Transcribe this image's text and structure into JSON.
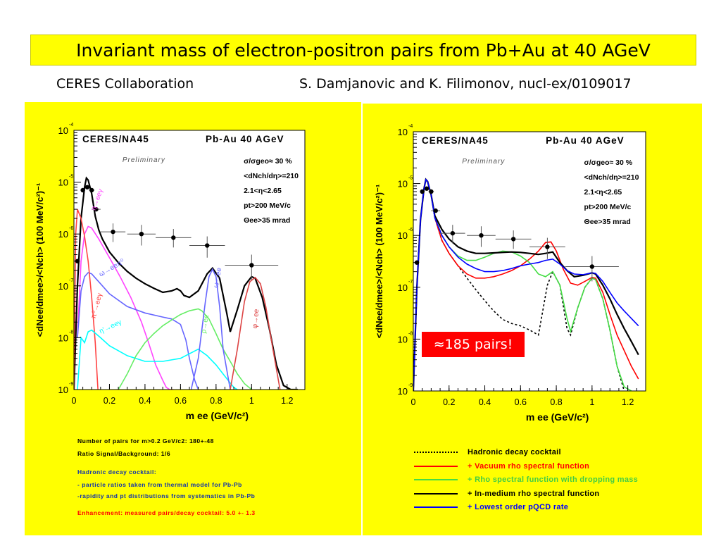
{
  "header": {
    "title": "Invariant mass of  electron-positron pairs  from  Pb+Au at 40 AGeV",
    "collab": "CERES Collaboration",
    "ref": "S. Damjanovic and K. Filimonov, nucl-ex/0109017"
  },
  "colors": {
    "panel_bg": "#ffff00",
    "plot_bg": "#ffffff",
    "red": "#ff0000",
    "green": "#44dd44",
    "blue": "#0000ff",
    "black": "#000000",
    "magenta": "#ff44ff",
    "cyan": "#00ffff",
    "lightgreen": "#66ee66",
    "lightblue": "#6666ff"
  },
  "plot_common": {
    "experiment": "CERES/NA45",
    "system": "Pb-Au 40 AGeV",
    "preliminary": "Preliminary",
    "cuts": [
      "σ/σgeo≈ 30 %",
      "<dNch/dη>=210",
      "2.1<η<2.65",
      "pt>200 MeV/c",
      "Θee>35 mrad"
    ],
    "ylabel": "<dNee/dmee>/<Nch> (100 MeV/c²)⁻¹",
    "xlabel": "m ee (GeV/c²)",
    "xticks": [
      "0",
      "0.2",
      "0.4",
      "0.6",
      "0.8",
      "1",
      "1.2"
    ],
    "ytick_mant": [
      "10",
      "10",
      "10",
      "10",
      "10",
      "10"
    ],
    "ytick_exp": [
      "-9",
      "-8",
      "-7",
      "-6",
      "-5",
      "-4"
    ]
  },
  "left_labels": [
    "η→eeγ",
    "ω→eeπ⁰",
    "π⁰→eeγ",
    "η'→eeγ",
    "ρ→ee",
    "ω→ee",
    "φ→ee"
  ],
  "left_notes": {
    "n1": "Number of pairs for m>0.2 GeV/c2: 180+-48",
    "n2": "Ratio Signal/Background: 1/6",
    "n3": "Hadronic decay cocktail:",
    "n4": "- particle ratios taken from  thermal model for Pb-Pb",
    "n5": "-rapidity and pt distributions from  systematics in Pb-Pb",
    "n6": "Enhancement: measured pairs/decay cocktail: 5.0 +- 1.3"
  },
  "callout": "≈185 pairs!",
  "legend": [
    {
      "label": "Hadronic decay cocktail",
      "color": "#000000",
      "style": "dotted"
    },
    {
      "label": "+ Vacuum rho spectral function",
      "color": "#ff0000",
      "style": "solid"
    },
    {
      "label": "+ Rho spectral function with dropping mass",
      "color": "#44dd44",
      "style": "solid"
    },
    {
      "label": "+ In-medium rho spectral function",
      "color": "#000000",
      "style": "solid"
    },
    {
      "label": "+ Lowest order pQCD rate",
      "color": "#0000ff",
      "style": "solid"
    }
  ],
  "chart_data": [
    {
      "type": "line",
      "title": "CERES/NA45 Pb-Au 40 AGeV",
      "xlabel": "m ee (GeV/c²)",
      "ylabel": "<dNee/dmee>/<Nch> (100 MeV/c²)⁻¹",
      "xlim": [
        0,
        1.3
      ],
      "ylim": [
        1e-09,
        0.0001
      ],
      "yscale": "log",
      "data_points": {
        "x": [
          0.02,
          0.05,
          0.075,
          0.1,
          0.125,
          0.22,
          0.38,
          0.56,
          0.75,
          1.0
        ],
        "y": [
          3e-07,
          7e-06,
          8e-06,
          7e-06,
          3e-06,
          1.1e-06,
          1e-06,
          8.5e-07,
          6e-07,
          2.5e-07
        ],
        "xerr": [
          0.01,
          0.01,
          0.01,
          0.015,
          0.025,
          0.07,
          0.08,
          0.1,
          0.1,
          0.15
        ],
        "yerr_lo": [
          0,
          0,
          0,
          0,
          0,
          4e-07,
          4e-07,
          3e-07,
          2.5e-07,
          1.2e-07
        ],
        "yerr_hi": [
          0,
          0,
          0,
          0,
          0,
          5e-07,
          5e-07,
          4e-07,
          3e-07,
          1.5e-07
        ]
      },
      "series": [
        {
          "name": "total cocktail",
          "color": "#000000",
          "x": [
            0.0,
            0.02,
            0.04,
            0.06,
            0.07,
            0.08,
            0.1,
            0.12,
            0.14,
            0.16,
            0.2,
            0.25,
            0.3,
            0.35,
            0.4,
            0.45,
            0.5,
            0.55,
            0.58,
            0.6,
            0.62,
            0.65,
            0.7,
            0.75,
            0.78,
            0.82,
            0.86,
            0.88,
            0.92,
            0.96,
            1.0,
            1.02,
            1.06,
            1.1,
            1.14,
            1.18,
            1.22,
            1.26
          ],
          "y": [
            1e-09,
            1e-07,
            2e-06,
            8e-06,
            1.2e-05,
            1.1e-05,
            6e-06,
            2.2e-06,
            1.2e-06,
            8e-07,
            4.5e-07,
            2.8e-07,
            1.9e-07,
            1.4e-07,
            1.1e-07,
            9e-08,
            7.5e-08,
            8e-08,
            8.8e-08,
            8e-08,
            6.5e-08,
            6e-08,
            8e-08,
            1.7e-07,
            2.2e-07,
            1.4e-07,
            3e-08,
            1.3e-08,
            3.5e-08,
            1e-07,
            1.5e-07,
            1.4e-07,
            6e-08,
            1.5e-08,
            3e-09,
            1.2e-09,
            1e-09,
            1e-09
          ]
        },
        {
          "name": "η→eeγ",
          "color": "#ff44ff",
          "x": [
            0.02,
            0.04,
            0.06,
            0.08,
            0.1,
            0.14,
            0.2,
            0.26,
            0.32,
            0.38,
            0.42,
            0.46,
            0.5,
            0.52,
            0.54,
            0.56
          ],
          "y": [
            1e-08,
            3e-07,
            1e-06,
            1.4e-06,
            1.3e-06,
            8e-07,
            3.5e-07,
            1.5e-07,
            6e-08,
            2e-08,
            8e-09,
            3e-09,
            1.5e-09,
            1.1e-09,
            1e-09,
            1e-09
          ]
        },
        {
          "name": "ω→eeπ⁰",
          "color": "#6666ff",
          "x": [
            0.02,
            0.04,
            0.06,
            0.08,
            0.1,
            0.15,
            0.2,
            0.3,
            0.4,
            0.5,
            0.55,
            0.6,
            0.63,
            0.65,
            0.68,
            0.7
          ],
          "y": [
            1e-08,
            8e-08,
            1.5e-07,
            1.8e-07,
            1.7e-07,
            1.1e-07,
            7e-08,
            4e-08,
            3e-08,
            2.5e-08,
            2.3e-08,
            1.8e-08,
            9e-09,
            4e-09,
            1.5e-09,
            1e-09
          ]
        },
        {
          "name": "π⁰→eeγ",
          "color": "#ff4444",
          "x": [
            0.0,
            0.01,
            0.02,
            0.04,
            0.06,
            0.08,
            0.1,
            0.12,
            0.13,
            0.135
          ],
          "y": [
            1e-09,
            1e-06,
            3e-06,
            2e-06,
            9e-07,
            3e-07,
            6e-08,
            8e-09,
            2e-09,
            1e-09
          ]
        },
        {
          "name": "η'→eeγ",
          "color": "#00ffff",
          "x": [
            0.02,
            0.04,
            0.06,
            0.08,
            0.1,
            0.15,
            0.2,
            0.3,
            0.4,
            0.5,
            0.6,
            0.7,
            0.75,
            0.8,
            0.85,
            0.9,
            0.92
          ],
          "y": [
            1e-09,
            1e-08,
            8e-09,
            1.3e-08,
            1.4e-08,
            1e-08,
            7e-09,
            4.5e-09,
            3.5e-09,
            3.5e-09,
            4e-09,
            6e-09,
            4.5e-09,
            3e-09,
            1.8e-09,
            1.1e-09,
            1e-09
          ]
        },
        {
          "name": "ρ→ee",
          "color": "#66ee66",
          "x": [
            0.25,
            0.3,
            0.35,
            0.4,
            0.45,
            0.5,
            0.55,
            0.6,
            0.65,
            0.7,
            0.72,
            0.76,
            0.8,
            0.84,
            0.88,
            0.92,
            0.96,
            1.0
          ],
          "y": [
            1e-09,
            2e-09,
            4.5e-09,
            8e-09,
            1.2e-08,
            1.7e-08,
            2.2e-08,
            2.8e-08,
            3.3e-08,
            3.6e-08,
            3.3e-08,
            2.3e-08,
            1.2e-08,
            6e-09,
            3.5e-09,
            2e-09,
            1.3e-09,
            1e-09
          ]
        },
        {
          "name": "ω→ee",
          "color": "#6666ff",
          "x": [
            0.66,
            0.7,
            0.74,
            0.76,
            0.78,
            0.8,
            0.82,
            0.84,
            0.88
          ],
          "y": [
            1e-09,
            4e-09,
            5e-08,
            1.5e-07,
            2.1e-07,
            1.5e-07,
            4e-08,
            6e-09,
            1e-09
          ]
        },
        {
          "name": "φ→ee",
          "color": "#dd4444",
          "x": [
            0.88,
            0.92,
            0.96,
            0.99,
            1.02,
            1.05,
            1.08,
            1.12,
            1.16
          ],
          "y": [
            1e-09,
            6e-09,
            5e-08,
            1.2e-07,
            1.45e-07,
            1.1e-07,
            4e-08,
            6e-09,
            1e-09
          ]
        }
      ]
    },
    {
      "type": "line",
      "title": "CERES/NA45 Pb-Au 40 AGeV",
      "xlabel": "m ee (GeV/c²)",
      "ylabel": "<dNee/dmee>/<Nch> (100 MeV/c²)⁻¹",
      "xlim": [
        0,
        1.3
      ],
      "ylim": [
        1e-09,
        0.0001
      ],
      "yscale": "log",
      "data_points": {
        "x": [
          0.02,
          0.05,
          0.075,
          0.1,
          0.125,
          0.22,
          0.38,
          0.56,
          0.75,
          1.0
        ],
        "y": [
          3e-07,
          7e-06,
          8e-06,
          7e-06,
          3e-06,
          1.1e-06,
          1e-06,
          8.5e-07,
          6e-07,
          2.5e-07
        ],
        "xerr": [
          0.01,
          0.01,
          0.01,
          0.015,
          0.025,
          0.07,
          0.08,
          0.1,
          0.1,
          0.15
        ],
        "yerr_lo": [
          0,
          0,
          0,
          0,
          0,
          4e-07,
          4e-07,
          3e-07,
          2.5e-07,
          1.2e-07
        ],
        "yerr_hi": [
          0,
          0,
          0,
          0,
          0,
          5e-07,
          5e-07,
          4e-07,
          3e-07,
          1.5e-07
        ]
      },
      "series": [
        {
          "name": "Hadronic decay cocktail",
          "color": "#000000",
          "dash": "3,3",
          "x": [
            0.0,
            0.02,
            0.04,
            0.06,
            0.07,
            0.08,
            0.1,
            0.12,
            0.16,
            0.2,
            0.25,
            0.3,
            0.35,
            0.4,
            0.45,
            0.5,
            0.55,
            0.6,
            0.65,
            0.7,
            0.75,
            0.78,
            0.82,
            0.86,
            0.88,
            0.92,
            0.96,
            1.0,
            1.02,
            1.06,
            1.1,
            1.14,
            1.18
          ],
          "y": [
            1e-09,
            1e-07,
            2e-06,
            8e-06,
            1.2e-05,
            1.1e-05,
            6e-06,
            2.2e-06,
            8e-07,
            4.5e-07,
            2.6e-07,
            1.5e-07,
            9e-08,
            5.5e-08,
            3.5e-08,
            2.4e-08,
            2e-08,
            1.8e-08,
            1.5e-08,
            1.2e-08,
            1.1e-07,
            2e-07,
            1.1e-07,
            1.6e-08,
            1.2e-08,
            4e-08,
            1e-07,
            1.5e-07,
            1.4e-07,
            6e-08,
            1.5e-08,
            3e-09,
            1e-09
          ]
        },
        {
          "name": "+ Vacuum rho spectral function",
          "color": "#ff0000",
          "x": [
            0.0,
            0.02,
            0.04,
            0.06,
            0.07,
            0.08,
            0.1,
            0.12,
            0.16,
            0.2,
            0.25,
            0.3,
            0.35,
            0.4,
            0.45,
            0.5,
            0.55,
            0.6,
            0.65,
            0.7,
            0.74,
            0.77,
            0.8,
            0.84,
            0.88,
            0.92,
            0.96,
            1.0,
            1.02,
            1.06,
            1.1,
            1.14,
            1.18,
            1.22,
            1.26
          ],
          "y": [
            1e-09,
            1e-07,
            2e-06,
            8e-06,
            1.2e-05,
            1.1e-05,
            6e-06,
            2.2e-06,
            8e-07,
            4.5e-07,
            2.6e-07,
            1.8e-07,
            1.5e-07,
            1.5e-07,
            1.6e-07,
            1.8e-07,
            2.1e-07,
            2.6e-07,
            3.5e-07,
            5e-07,
            7.3e-07,
            7.5e-07,
            5e-07,
            2.2e-07,
            1.2e-07,
            1.1e-07,
            1.3e-07,
            1.55e-07,
            1.5e-07,
            8e-08,
            3e-08,
            1.2e-08,
            6e-09,
            3e-09,
            1.7e-09
          ]
        },
        {
          "name": "+ Rho spectral function with dropping mass",
          "color": "#44dd44",
          "x": [
            0.0,
            0.02,
            0.04,
            0.06,
            0.07,
            0.08,
            0.1,
            0.12,
            0.16,
            0.2,
            0.25,
            0.3,
            0.35,
            0.4,
            0.45,
            0.5,
            0.55,
            0.6,
            0.65,
            0.7,
            0.74,
            0.78,
            0.82,
            0.86,
            0.88,
            0.92,
            0.96,
            1.0,
            1.02,
            1.06,
            1.1,
            1.14,
            1.18,
            1.22
          ],
          "y": [
            1e-09,
            1e-07,
            2e-06,
            8e-06,
            1.2e-05,
            1.1e-05,
            6e-06,
            2.2e-06,
            1e-06,
            6e-07,
            4e-07,
            3.3e-07,
            3.3e-07,
            3.8e-07,
            4.5e-07,
            5e-07,
            4.8e-07,
            4e-07,
            3e-07,
            1.8e-07,
            1.6e-07,
            2e-07,
            1.1e-07,
            2.5e-08,
            1.4e-08,
            4e-08,
            1e-07,
            1.5e-07,
            1.4e-07,
            6e-08,
            1.5e-08,
            3e-09,
            1.2e-09,
            1e-09
          ]
        },
        {
          "name": "+ In-medium rho spectral function",
          "color": "#000000",
          "x": [
            0.0,
            0.02,
            0.04,
            0.06,
            0.07,
            0.08,
            0.1,
            0.12,
            0.16,
            0.2,
            0.25,
            0.3,
            0.35,
            0.4,
            0.45,
            0.5,
            0.55,
            0.6,
            0.65,
            0.7,
            0.74,
            0.78,
            0.82,
            0.86,
            0.9,
            0.95,
            1.0,
            1.02,
            1.06,
            1.1,
            1.14,
            1.18,
            1.22,
            1.26
          ],
          "y": [
            1e-09,
            1e-07,
            2e-06,
            8e-06,
            1.2e-05,
            1.1e-05,
            6e-06,
            2.4e-06,
            1.3e-06,
            8.5e-07,
            6e-07,
            5e-07,
            4.5e-07,
            4.5e-07,
            4.6e-07,
            4.7e-07,
            4.8e-07,
            4.7e-07,
            4.5e-07,
            4.3e-07,
            4.5e-07,
            4.8e-07,
            3e-07,
            2.1e-07,
            1.6e-07,
            1.7e-07,
            1.9e-07,
            1.8e-07,
            1.1e-07,
            6e-08,
            3e-08,
            1.6e-08,
            9e-09,
            5e-09
          ]
        },
        {
          "name": "+ Lowest order pQCD rate",
          "color": "#0000ff",
          "x": [
            0.0,
            0.02,
            0.04,
            0.06,
            0.07,
            0.08,
            0.1,
            0.12,
            0.16,
            0.2,
            0.25,
            0.3,
            0.35,
            0.4,
            0.45,
            0.5,
            0.55,
            0.6,
            0.65,
            0.7,
            0.74,
            0.78,
            0.82,
            0.86,
            0.9,
            0.95,
            1.0,
            1.02,
            1.06,
            1.1,
            1.14,
            1.18,
            1.22,
            1.26
          ],
          "y": [
            1e-09,
            1e-07,
            2e-06,
            8e-06,
            1.2e-05,
            1.1e-05,
            6e-06,
            2.2e-06,
            1e-06,
            6e-07,
            3.8e-07,
            2.8e-07,
            2.3e-07,
            2e-07,
            2e-07,
            2.1e-07,
            2.3e-07,
            2.6e-07,
            2.8e-07,
            3e-07,
            3.3e-07,
            3.5e-07,
            2.8e-07,
            2.1e-07,
            1.8e-07,
            1.75e-07,
            1.9e-07,
            1.85e-07,
            1.3e-07,
            8e-08,
            5e-08,
            3.5e-08,
            2.5e-08,
            1.8e-08
          ]
        }
      ]
    }
  ]
}
